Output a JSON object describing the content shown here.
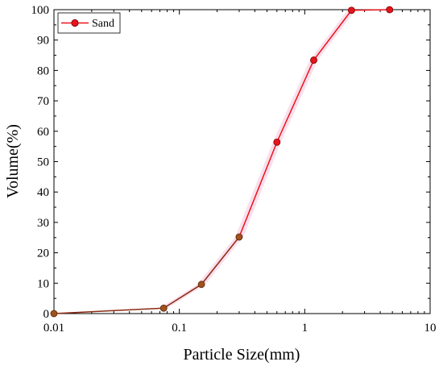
{
  "chart_data": {
    "type": "line",
    "xscale": "log",
    "xlabel": "Particle Size(mm)",
    "ylabel": "Volume(%)",
    "xlim": [
      0.01,
      10
    ],
    "ylim": [
      0,
      100
    ],
    "x_ticks": [
      0.01,
      0.1,
      1,
      10
    ],
    "x_tick_labels": [
      "0.01",
      "0.1",
      "1",
      "10"
    ],
    "y_ticks": [
      0,
      10,
      20,
      30,
      40,
      50,
      60,
      70,
      80,
      90,
      100
    ],
    "y_tick_labels": [
      "0",
      "10",
      "20",
      "30",
      "40",
      "50",
      "60",
      "70",
      "80",
      "90",
      "100"
    ],
    "grid": false,
    "legend_position": "top-left",
    "series": [
      {
        "name": "Sand",
        "color": "#e8141b",
        "x": [
          0.01,
          0.075,
          0.15,
          0.3,
          0.6,
          1.18,
          2.36,
          4.75
        ],
        "y": [
          0,
          1.8,
          9.6,
          25.2,
          56.4,
          83.4,
          99.8,
          100
        ]
      }
    ]
  }
}
